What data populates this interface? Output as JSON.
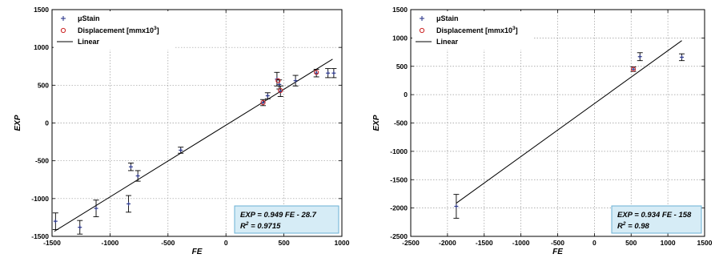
{
  "chart_data": [
    {
      "type": "scatter",
      "xlabel": "FE",
      "ylabel": "EXP",
      "xlim": [
        -1500,
        1000
      ],
      "ylim": [
        -1500,
        1500
      ],
      "xticks": [
        -1500,
        -1000,
        -500,
        0,
        500,
        1000
      ],
      "yticks": [
        -1500,
        -1000,
        -500,
        0,
        500,
        1000,
        1500
      ],
      "grid": true,
      "legend_position": "top-left",
      "legend": {
        "stain_prefix": "μ",
        "stain": "Stain",
        "disp": "Displacement [mmx10",
        "disp_exp": "3",
        "disp_close": "]",
        "fit": "Linear"
      },
      "equation": {
        "line1": "EXP = 0.949 FE - 28.7",
        "r2_prefix": "R",
        "r2_exp": "2",
        "r2_value": " = 0.9715"
      },
      "fit": {
        "slope": 0.949,
        "intercept": -28.7
      },
      "series": [
        {
          "name": "μStain",
          "marker": "plus",
          "color": "#2f3a8c",
          "points": [
            {
              "x": -1470,
              "y": -1300,
              "err": 110
            },
            {
              "x": -1260,
              "y": -1380,
              "err": 90
            },
            {
              "x": -1120,
              "y": -1130,
              "err": 110
            },
            {
              "x": -840,
              "y": -1070,
              "err": 110
            },
            {
              "x": -820,
              "y": -580,
              "err": 50
            },
            {
              "x": -760,
              "y": -700,
              "err": 70
            },
            {
              "x": -390,
              "y": -360,
              "err": 40
            },
            {
              "x": 320,
              "y": 270,
              "err": 40
            },
            {
              "x": 360,
              "y": 360,
              "err": 40
            },
            {
              "x": 440,
              "y": 580,
              "err": 90
            },
            {
              "x": 460,
              "y": 510,
              "err": 60
            },
            {
              "x": 470,
              "y": 420,
              "err": 70
            },
            {
              "x": 600,
              "y": 560,
              "err": 70
            },
            {
              "x": 780,
              "y": 660,
              "err": 50
            },
            {
              "x": 880,
              "y": 660,
              "err": 60
            },
            {
              "x": 930,
              "y": 660,
              "err": 60
            }
          ]
        },
        {
          "name": "Displacement [mmx10^3]",
          "marker": "circle",
          "color": "#cc2222",
          "points": [
            {
              "x": 320,
              "y": 270
            },
            {
              "x": 450,
              "y": 560
            },
            {
              "x": 470,
              "y": 430
            },
            {
              "x": 780,
              "y": 670
            }
          ]
        }
      ]
    },
    {
      "type": "scatter",
      "xlabel": "FE",
      "ylabel": "EXP",
      "xlim": [
        -2500,
        1500
      ],
      "ylim": [
        -2500,
        1500
      ],
      "xticks": [
        -2500,
        -2000,
        -1500,
        -1000,
        -500,
        0,
        500,
        1000,
        1500
      ],
      "yticks": [
        -2500,
        -2000,
        -1500,
        -1000,
        -500,
        0,
        500,
        1000,
        1500
      ],
      "grid": true,
      "legend_position": "top-left",
      "legend": {
        "stain_prefix": "μ",
        "stain": "Stain",
        "disp": "Displacement [mmx10",
        "disp_exp": "3",
        "disp_close": "]",
        "fit": "Linear"
      },
      "equation": {
        "line1": "EXP = 0.934 FE - 158",
        "r2_prefix": "R",
        "r2_exp": "2",
        "r2_value": " = 0.98"
      },
      "fit": {
        "slope": 0.934,
        "intercept": -158
      },
      "series": [
        {
          "name": "μStain",
          "marker": "plus",
          "color": "#2f3a8c",
          "points": [
            {
              "x": -1880,
              "y": -1970,
              "err": 210
            },
            {
              "x": 530,
              "y": 450,
              "err": 40
            },
            {
              "x": 620,
              "y": 670,
              "err": 70
            },
            {
              "x": 1190,
              "y": 660,
              "err": 60
            }
          ]
        },
        {
          "name": "Displacement [mmx10^3]",
          "marker": "circle",
          "color": "#cc2222",
          "points": [
            {
              "x": 530,
              "y": 450
            }
          ]
        }
      ]
    }
  ]
}
